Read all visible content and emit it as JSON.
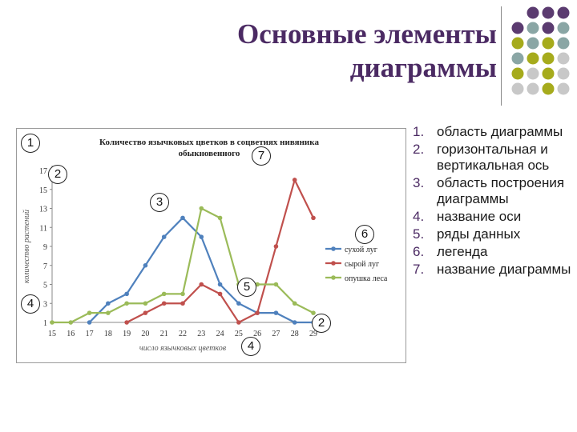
{
  "slide": {
    "title_line1": "Основные элементы",
    "title_line2": "диаграммы",
    "palette": {
      "purple": "#5b3b70",
      "olive": "#a6ab1c",
      "teal": "#8aa6a5",
      "grey": "#c8c8c8"
    }
  },
  "list": [
    {
      "num": "1.",
      "text": "область диаграммы"
    },
    {
      "num": "2.",
      "text": "горизонтальная и вертикальная ось"
    },
    {
      "num": "3.",
      "text": "область построения диаграммы"
    },
    {
      "num": "4.",
      "text": "название оси"
    },
    {
      "num": "5.",
      "text": "ряды данных"
    },
    {
      "num": "6.",
      "text": "легенда"
    },
    {
      "num": "7.",
      "text": "название диаграммы"
    }
  ],
  "badges": [
    "1",
    "2",
    "3",
    "4",
    "5",
    "6",
    "7",
    "2",
    "4"
  ],
  "chart_data": {
    "type": "line",
    "title": "Количество язычковых цветков в соцветиях нивяника обыкновенного",
    "xlabel": "число язычковых цветков",
    "ylabel": "количество растений",
    "x": [
      15,
      16,
      17,
      18,
      19,
      20,
      21,
      22,
      23,
      24,
      25,
      26,
      27,
      28,
      29
    ],
    "y_ticks": [
      1,
      3,
      5,
      7,
      9,
      11,
      13,
      15,
      17
    ],
    "ylim": [
      1,
      17
    ],
    "legend_position": "right",
    "grid": false,
    "series": [
      {
        "name": "сухой луг",
        "color": "#4f81bd",
        "points": [
          [
            17,
            1
          ],
          [
            18,
            3
          ],
          [
            19,
            4
          ],
          [
            20,
            7
          ],
          [
            21,
            10
          ],
          [
            22,
            12
          ],
          [
            23,
            10
          ],
          [
            24,
            5
          ],
          [
            25,
            3
          ],
          [
            26,
            2
          ],
          [
            27,
            2
          ],
          [
            28,
            1
          ],
          [
            29,
            1
          ]
        ]
      },
      {
        "name": "сырой луг",
        "color": "#c0504d",
        "points": [
          [
            19,
            1
          ],
          [
            20,
            2
          ],
          [
            21,
            3
          ],
          [
            22,
            3
          ],
          [
            23,
            5
          ],
          [
            24,
            4
          ],
          [
            25,
            1
          ],
          [
            26,
            2
          ],
          [
            27,
            9
          ],
          [
            28,
            16
          ],
          [
            29,
            12
          ]
        ]
      },
      {
        "name": "опушка леса",
        "color": "#9bbb59",
        "points": [
          [
            15,
            1
          ],
          [
            16,
            1
          ],
          [
            17,
            2
          ],
          [
            18,
            2
          ],
          [
            19,
            3
          ],
          [
            20,
            3
          ],
          [
            21,
            4
          ],
          [
            22,
            4
          ],
          [
            23,
            13
          ],
          [
            24,
            12
          ],
          [
            25,
            5
          ],
          [
            26,
            5
          ],
          [
            27,
            5
          ],
          [
            28,
            3
          ],
          [
            29,
            2
          ]
        ]
      }
    ]
  }
}
